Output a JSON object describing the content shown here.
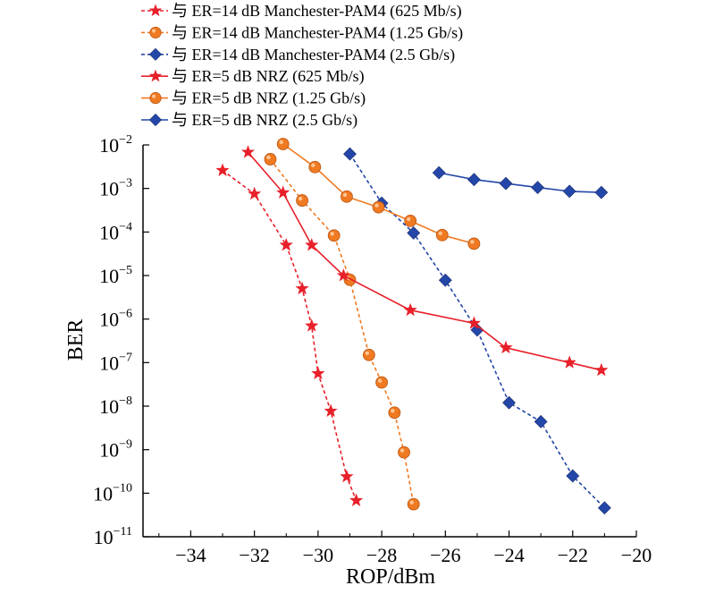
{
  "chart_data": {
    "type": "line",
    "xlabel": "ROP/dBm",
    "ylabel": "BER",
    "xlim": [
      -35.5,
      -20
    ],
    "ylim_exponent": [
      -11,
      -2
    ],
    "y_scale": "log",
    "x_ticks": [
      -34,
      -32,
      -30,
      -28,
      -26,
      -24,
      -22,
      -20
    ],
    "x_tick_labels": [
      "−34",
      "−32",
      "−30",
      "−28",
      "−26",
      "−24",
      "−22",
      "−20"
    ],
    "y_ticks": [
      {
        "base": "10",
        "exp": "−2",
        "value": -2
      },
      {
        "base": "10",
        "exp": "−3",
        "value": -3
      },
      {
        "base": "10",
        "exp": "−4",
        "value": -4
      },
      {
        "base": "10",
        "exp": "−5",
        "value": -5
      },
      {
        "base": "10",
        "exp": "−6",
        "value": -6
      },
      {
        "base": "10",
        "exp": "−7",
        "value": -7
      },
      {
        "base": "10",
        "exp": "−8",
        "value": -8
      },
      {
        "base": "10",
        "exp": "−9",
        "value": -9
      },
      {
        "base": "10",
        "exp": "−10",
        "value": -10
      },
      {
        "base": "10",
        "exp": "−11",
        "value": -11
      }
    ],
    "legend_position": "top",
    "series": [
      {
        "name": "与 ER=14 dB Manchester-PAM4 (625 Mb/s)",
        "color": "#e8202a",
        "marker": "star",
        "dash": "dashed",
        "x": [
          -33.0,
          -32.0,
          -31.0,
          -30.5,
          -30.2,
          -30.0,
          -29.6,
          -29.1,
          -28.8
        ],
        "y": [
          0.0026,
          0.00075,
          5e-05,
          5e-06,
          7e-07,
          5.6e-08,
          7.7e-09,
          2.4e-10,
          6.8e-11
        ]
      },
      {
        "name": "与 ER=14 dB Manchester-PAM4 (1.25 Gb/s)",
        "color": "#f07a22",
        "marker": "circle",
        "dash": "dashed",
        "x": [
          -31.5,
          -30.5,
          -29.5,
          -29.0,
          -28.4,
          -28.0,
          -27.6,
          -27.3,
          -27.0
        ],
        "y": [
          0.0047,
          0.00053,
          8.3e-05,
          8e-06,
          1.5e-07,
          3.5e-08,
          7.1e-09,
          8.7e-10,
          5.6e-11
        ]
      },
      {
        "name": "与 ER=14 dB Manchester-PAM4 (2.5 Gb/s)",
        "color": "#2346a8",
        "marker": "diamond",
        "dash": "dashed",
        "x": [
          -29.0,
          -28.0,
          -27.0,
          -26.0,
          -25.0,
          -24.0,
          -23.0,
          -22.0,
          -21.0
        ],
        "y": [
          0.0062,
          0.00046,
          9.5e-05,
          7.8e-06,
          5.6e-07,
          1.2e-08,
          4.4e-09,
          2.5e-10,
          4.6e-11
        ]
      },
      {
        "name": "与 ER=5 dB NRZ (625 Mb/s)",
        "color": "#e8202a",
        "marker": "star",
        "dash": "solid",
        "x": [
          -32.2,
          -31.1,
          -30.2,
          -29.2,
          -27.1,
          -25.1,
          -24.1,
          -22.1,
          -21.1
        ],
        "y": [
          0.0068,
          0.0008,
          5e-05,
          1e-05,
          1.6e-06,
          8e-07,
          2.2e-07,
          1e-07,
          6.7e-08
        ]
      },
      {
        "name": "与 ER=5 dB NRZ (1.25 Gb/s)",
        "color": "#f07a22",
        "marker": "circle",
        "dash": "solid",
        "x": [
          -31.1,
          -30.1,
          -29.1,
          -28.1,
          -27.1,
          -26.1,
          -25.1
        ],
        "y": [
          0.0105,
          0.0031,
          0.00065,
          0.00037,
          0.00018,
          8.5e-05,
          5.4e-05
        ]
      },
      {
        "name": "与 ER=5 dB NRZ (2.5 Gb/s)",
        "color": "#2346a8",
        "marker": "diamond",
        "dash": "solid",
        "x": [
          -26.2,
          -25.1,
          -24.1,
          -23.1,
          -22.1,
          -21.1
        ],
        "y": [
          0.0023,
          0.0016,
          0.0013,
          0.00105,
          0.00086,
          0.00081
        ]
      }
    ]
  }
}
